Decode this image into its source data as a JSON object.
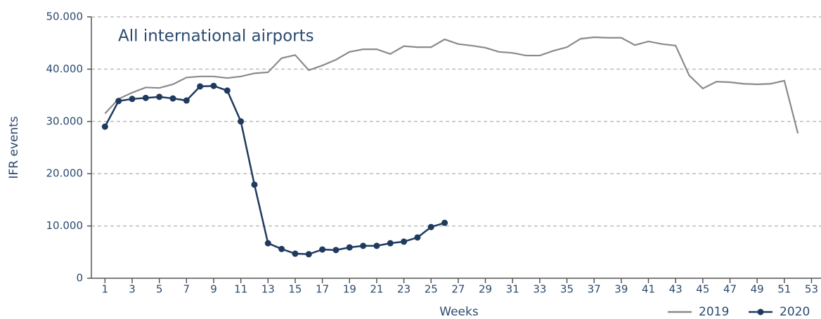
{
  "chart_data": {
    "type": "line",
    "annotation": "All international airports",
    "xlabel": "Weeks",
    "ylabel": "IFR events",
    "x": [
      1,
      2,
      3,
      4,
      5,
      6,
      7,
      8,
      9,
      10,
      11,
      12,
      13,
      14,
      15,
      16,
      17,
      18,
      19,
      20,
      21,
      22,
      23,
      24,
      25,
      26,
      27,
      28,
      29,
      30,
      31,
      32,
      33,
      34,
      35,
      36,
      37,
      38,
      39,
      40,
      41,
      42,
      43,
      44,
      45,
      46,
      47,
      48,
      49,
      50,
      51,
      52
    ],
    "series": [
      {
        "name": "2019",
        "color": "#8a8a8a",
        "marker": false,
        "values": [
          31500,
          34300,
          35500,
          36500,
          36400,
          37100,
          38400,
          38600,
          38600,
          38300,
          38600,
          39200,
          39400,
          42100,
          42700,
          39800,
          40700,
          41800,
          43300,
          43800,
          43800,
          42900,
          44400,
          44200,
          44200,
          45700,
          44800,
          44500,
          44100,
          43300,
          43100,
          42600,
          42600,
          43500,
          44200,
          45800,
          46100,
          46000,
          46000,
          44600,
          45300,
          44800,
          44500,
          38800,
          36300,
          37600,
          37500,
          37200,
          37100,
          37200,
          37800,
          27700
        ]
      },
      {
        "name": "2020",
        "color": "#1f3a5f",
        "marker": true,
        "values": [
          29000,
          33900,
          34300,
          34500,
          34700,
          34400,
          34000,
          36700,
          36800,
          35900,
          30000,
          17900,
          6700,
          5600,
          4700,
          4600,
          5500,
          5400,
          5900,
          6200,
          6200,
          6700,
          7000,
          7800,
          9800,
          10600,
          null,
          null,
          null,
          null,
          null,
          null,
          null,
          null,
          null,
          null,
          null,
          null,
          null,
          null,
          null,
          null,
          null,
          null,
          null,
          null,
          null,
          null,
          null,
          null,
          null,
          null
        ]
      }
    ],
    "xlim": [
      0,
      53.7
    ],
    "xticks": [
      1,
      3,
      5,
      7,
      9,
      11,
      13,
      15,
      17,
      19,
      21,
      23,
      25,
      27,
      29,
      31,
      33,
      35,
      37,
      39,
      41,
      43,
      45,
      47,
      49,
      51,
      53
    ],
    "ylim": [
      0,
      50000
    ],
    "yticks": [
      0,
      {
        "value": 10000,
        "label": "10.000"
      },
      {
        "value": 20000,
        "label": "20.000"
      },
      {
        "value": 30000,
        "label": "30.000"
      },
      {
        "value": 40000,
        "label": "40.000"
      },
      {
        "value": 50000,
        "label": "50.000"
      }
    ],
    "grid": true,
    "legend": "bottom-right"
  }
}
